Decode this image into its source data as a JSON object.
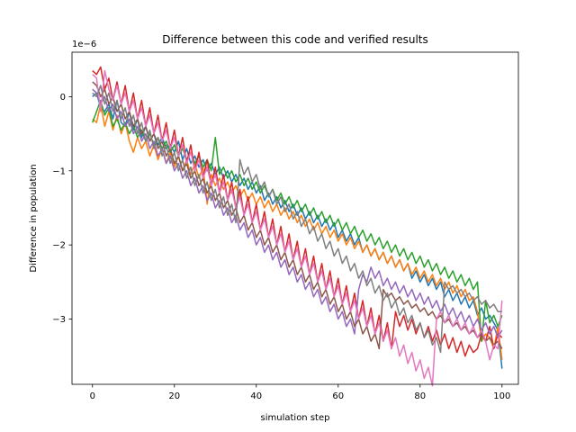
{
  "chart_data": {
    "type": "line",
    "title": "Difference between this code and verified results",
    "xlabel": "simulation step",
    "ylabel": "Difference in population",
    "offset_text": "1e−6",
    "y_scale_exponent": -6,
    "xlim": [
      -5,
      104
    ],
    "ylim": [
      -3.88,
      0.6
    ],
    "xticks": [
      0,
      20,
      40,
      60,
      80,
      100
    ],
    "yticks": [
      0,
      -1,
      -2,
      -3
    ],
    "grid": false,
    "legend": "none",
    "series_colors": [
      "#1f77b4",
      "#ff7f0e",
      "#2ca02c",
      "#d62728",
      "#9467bd",
      "#8c564b",
      "#e377c2",
      "#7f7f7f"
    ],
    "series": [
      {
        "values": [
          0.0,
          0.05,
          -0.15,
          -0.2,
          -0.1,
          -0.3,
          -0.05,
          -0.35,
          -0.4,
          -0.2,
          -0.45,
          -0.3,
          -0.55,
          -0.4,
          -0.6,
          -0.5,
          -0.65,
          -0.55,
          -0.7,
          -0.65,
          -0.75,
          -0.6,
          -0.85,
          -0.7,
          -0.9,
          -0.8,
          -0.95,
          -0.85,
          -1.0,
          -0.9,
          -1.05,
          -0.95,
          -1.1,
          -1.0,
          -1.15,
          -1.05,
          -1.2,
          -1.1,
          -1.25,
          -1.15,
          -1.3,
          -1.2,
          -1.4,
          -1.3,
          -1.45,
          -1.35,
          -1.5,
          -1.4,
          -1.55,
          -1.45,
          -1.6,
          -1.5,
          -1.65,
          -1.55,
          -1.7,
          -1.6,
          -1.75,
          -1.65,
          -1.8,
          -1.7,
          -1.9,
          -1.8,
          -1.95,
          -1.85,
          -2.0,
          -1.9,
          -2.1,
          -2.0,
          -2.15,
          -2.05,
          -2.2,
          -2.1,
          -2.25,
          -2.15,
          -2.3,
          -2.2,
          -2.35,
          -2.25,
          -2.45,
          -2.35,
          -2.5,
          -2.4,
          -2.55,
          -2.45,
          -2.6,
          -2.5,
          -2.7,
          -2.6,
          -2.75,
          -2.65,
          -2.8,
          -2.7,
          -2.85,
          -2.75,
          -2.95,
          -2.85,
          -3.0,
          -2.95,
          -3.05,
          -3.15,
          -3.67
        ]
      },
      {
        "values": [
          -0.3,
          -0.35,
          -0.1,
          -0.4,
          -0.2,
          -0.45,
          -0.25,
          -0.5,
          -0.35,
          -0.6,
          -0.75,
          -0.55,
          -0.7,
          -0.6,
          -0.8,
          -0.65,
          -0.85,
          -0.7,
          -0.9,
          -0.75,
          -0.95,
          -0.8,
          -1.0,
          -0.85,
          -1.05,
          -0.9,
          -1.1,
          -0.95,
          -1.45,
          -1.05,
          -1.2,
          -1.1,
          -1.25,
          -1.15,
          -1.3,
          -1.2,
          -1.35,
          -1.25,
          -1.4,
          -1.3,
          -1.45,
          -1.35,
          -1.5,
          -1.4,
          -1.55,
          -1.45,
          -1.6,
          -1.5,
          -1.65,
          -1.55,
          -1.7,
          -1.6,
          -1.75,
          -1.65,
          -1.8,
          -1.7,
          -1.85,
          -1.75,
          -1.9,
          -1.8,
          -1.95,
          -1.85,
          -2.0,
          -1.9,
          -2.05,
          -1.95,
          -2.1,
          -2.0,
          -2.15,
          -2.05,
          -2.2,
          -2.1,
          -2.25,
          -2.15,
          -2.3,
          -2.2,
          -2.35,
          -2.25,
          -2.4,
          -2.3,
          -2.45,
          -2.35,
          -2.5,
          -2.4,
          -2.55,
          -2.45,
          -2.6,
          -2.5,
          -2.65,
          -2.55,
          -2.7,
          -2.6,
          -2.75,
          -2.7,
          -2.9,
          -3.3,
          -3.2,
          -3.25,
          -3.4,
          -3.1,
          -3.55
        ]
      },
      {
        "values": [
          -0.35,
          -0.2,
          -0.05,
          -0.25,
          -0.15,
          -0.4,
          -0.3,
          -0.45,
          -0.35,
          -0.5,
          -0.4,
          -0.55,
          -0.45,
          -0.6,
          -0.5,
          -0.65,
          -0.55,
          -0.7,
          -0.6,
          -0.75,
          -0.65,
          -0.8,
          -0.7,
          -0.85,
          -0.75,
          -0.9,
          -0.8,
          -0.95,
          -0.85,
          -1.0,
          -0.55,
          -1.05,
          -0.95,
          -1.1,
          -1.0,
          -1.15,
          -1.05,
          -1.2,
          -1.1,
          -1.25,
          -1.15,
          -1.3,
          -1.2,
          -1.35,
          -1.25,
          -1.4,
          -1.3,
          -1.45,
          -1.35,
          -1.5,
          -1.4,
          -1.55,
          -1.45,
          -1.6,
          -1.5,
          -1.65,
          -1.55,
          -1.7,
          -1.6,
          -1.75,
          -1.65,
          -1.8,
          -1.7,
          -1.85,
          -1.75,
          -1.9,
          -1.8,
          -1.95,
          -1.85,
          -2.0,
          -1.9,
          -2.05,
          -1.95,
          -2.1,
          -2.0,
          -2.15,
          -2.05,
          -2.2,
          -2.1,
          -2.25,
          -2.15,
          -2.3,
          -2.2,
          -2.35,
          -2.25,
          -2.4,
          -2.3,
          -2.45,
          -2.35,
          -2.5,
          -2.4,
          -2.55,
          -2.45,
          -2.6,
          -2.5,
          -3.3,
          -2.75,
          -3.05,
          -2.95,
          -3.1,
          -2.95
        ]
      },
      {
        "values": [
          0.35,
          0.3,
          0.4,
          0.1,
          0.25,
          -0.05,
          0.2,
          -0.1,
          0.15,
          -0.2,
          0.05,
          -0.3,
          -0.05,
          -0.4,
          -0.15,
          -0.5,
          -0.25,
          -0.6,
          -0.35,
          -0.7,
          -0.45,
          -0.8,
          -0.55,
          -0.9,
          -0.65,
          -1.0,
          -0.75,
          -1.1,
          -0.85,
          -1.2,
          -0.95,
          -1.3,
          -1.05,
          -1.4,
          -1.15,
          -1.5,
          -1.25,
          -1.6,
          -1.35,
          -1.7,
          -1.45,
          -1.8,
          -1.55,
          -1.9,
          -1.65,
          -2.0,
          -1.75,
          -2.1,
          -1.85,
          -2.2,
          -1.95,
          -2.3,
          -2.05,
          -2.4,
          -2.15,
          -2.5,
          -2.25,
          -2.6,
          -2.35,
          -2.7,
          -2.45,
          -2.8,
          -2.55,
          -2.9,
          -2.65,
          -3.0,
          -2.75,
          -3.1,
          -2.85,
          -3.2,
          -2.95,
          -3.3,
          -3.05,
          -3.4,
          -2.9,
          -3.1,
          -2.95,
          -3.15,
          -3.0,
          -3.2,
          -3.05,
          -3.25,
          -3.1,
          -3.3,
          -3.15,
          -3.35,
          -3.2,
          -3.4,
          -3.25,
          -3.45,
          -3.3,
          -3.5,
          -3.35,
          -3.45,
          -3.4,
          -3.2,
          -3.3,
          -3.1,
          -3.4,
          -3.2,
          -3.25
        ]
      },
      {
        "values": [
          0.1,
          0.05,
          -0.1,
          0.0,
          -0.2,
          -0.1,
          -0.3,
          -0.2,
          -0.4,
          -0.3,
          -0.5,
          -0.4,
          -0.6,
          -0.5,
          -0.7,
          -0.6,
          -0.8,
          -0.7,
          -0.9,
          -0.8,
          -1.0,
          -0.9,
          -1.1,
          -1.0,
          -1.2,
          -1.1,
          -1.3,
          -1.2,
          -1.4,
          -1.3,
          -1.5,
          -1.4,
          -1.6,
          -1.5,
          -1.7,
          -1.6,
          -1.8,
          -1.7,
          -1.9,
          -1.8,
          -2.0,
          -1.9,
          -2.1,
          -2.0,
          -2.2,
          -2.1,
          -2.3,
          -2.2,
          -2.4,
          -2.3,
          -2.5,
          -2.4,
          -2.6,
          -2.5,
          -2.7,
          -2.6,
          -2.8,
          -2.7,
          -2.9,
          -2.8,
          -3.0,
          -2.9,
          -3.1,
          -3.0,
          -3.2,
          -2.6,
          -2.4,
          -2.5,
          -2.3,
          -2.45,
          -2.35,
          -2.55,
          -2.45,
          -2.6,
          -2.5,
          -2.65,
          -2.55,
          -2.7,
          -2.6,
          -2.75,
          -2.65,
          -2.8,
          -2.7,
          -2.85,
          -2.75,
          -2.9,
          -2.8,
          -2.95,
          -2.85,
          -3.0,
          -2.9,
          -3.05,
          -2.95,
          -3.1,
          -3.0,
          -3.15,
          -3.05,
          -3.2,
          -3.1,
          -3.25,
          -3.15
        ]
      },
      {
        "values": [
          0.2,
          0.15,
          0.0,
          0.1,
          -0.1,
          0.0,
          -0.2,
          -0.1,
          -0.3,
          -0.2,
          -0.4,
          -0.3,
          -0.5,
          -0.4,
          -0.6,
          -0.5,
          -0.7,
          -0.6,
          -0.8,
          -0.7,
          -0.9,
          -0.8,
          -1.0,
          -0.9,
          -1.1,
          -1.0,
          -1.2,
          -1.1,
          -1.3,
          -1.2,
          -1.4,
          -1.3,
          -1.5,
          -1.4,
          -1.6,
          -1.5,
          -1.7,
          -1.6,
          -1.8,
          -1.7,
          -1.9,
          -1.8,
          -2.0,
          -1.9,
          -2.1,
          -2.0,
          -2.2,
          -2.1,
          -2.3,
          -2.2,
          -2.4,
          -2.3,
          -2.5,
          -2.4,
          -2.6,
          -2.5,
          -2.7,
          -2.6,
          -2.8,
          -2.7,
          -2.9,
          -2.8,
          -3.0,
          -2.9,
          -3.1,
          -3.0,
          -3.2,
          -3.1,
          -3.3,
          -3.2,
          -3.4,
          -2.6,
          -2.7,
          -2.65,
          -2.75,
          -2.7,
          -2.8,
          -2.75,
          -2.85,
          -2.8,
          -2.9,
          -2.85,
          -2.95,
          -2.9,
          -3.0,
          -2.95,
          -3.05,
          -3.0,
          -3.1,
          -3.05,
          -3.15,
          -3.1,
          -3.2,
          -3.15,
          -3.25,
          -3.2,
          -3.3,
          -3.25,
          -3.35,
          -3.3,
          -3.4
        ]
      },
      {
        "values": [
          0.3,
          0.25,
          -0.2,
          0.35,
          0.1,
          -0.05,
          0.15,
          -0.1,
          0.05,
          -0.2,
          -0.05,
          -0.3,
          -0.15,
          -0.4,
          -0.25,
          -0.5,
          -0.35,
          -0.6,
          -0.45,
          -0.7,
          -0.55,
          -0.8,
          -0.65,
          -0.9,
          -0.75,
          -1.0,
          -0.85,
          -1.1,
          -0.95,
          -1.2,
          -1.05,
          -1.3,
          -1.15,
          -1.4,
          -1.25,
          -1.5,
          -1.35,
          -1.6,
          -1.45,
          -1.7,
          -1.55,
          -1.8,
          -1.65,
          -1.9,
          -1.75,
          -2.0,
          -1.85,
          -2.1,
          -1.95,
          -2.2,
          -2.05,
          -2.3,
          -2.15,
          -2.4,
          -2.25,
          -2.5,
          -2.35,
          -2.6,
          -2.45,
          -2.7,
          -2.55,
          -2.8,
          -2.65,
          -2.9,
          -2.75,
          -3.0,
          -2.85,
          -3.1,
          -2.95,
          -3.2,
          -3.05,
          -3.3,
          -3.15,
          -3.4,
          -3.25,
          -3.5,
          -3.35,
          -3.6,
          -3.45,
          -3.7,
          -3.55,
          -3.8,
          -3.65,
          -3.9,
          -3.0,
          -2.9,
          -3.05,
          -2.95,
          -3.1,
          -3.0,
          -3.15,
          -3.05,
          -3.2,
          -3.1,
          -3.25,
          -3.15,
          -3.3,
          -3.55,
          -3.35,
          -3.4,
          -2.75
        ]
      },
      {
        "values": [
          0.05,
          0.0,
          0.15,
          -0.1,
          0.05,
          -0.2,
          -0.05,
          -0.3,
          -0.15,
          -0.4,
          -0.25,
          -0.5,
          -0.35,
          -0.6,
          -0.45,
          -0.7,
          -0.55,
          -0.8,
          -0.65,
          -0.9,
          -0.75,
          -1.0,
          -0.85,
          -1.1,
          -0.95,
          -1.2,
          -1.05,
          -1.3,
          -1.15,
          -1.4,
          -1.25,
          -1.5,
          -1.35,
          -1.6,
          -1.45,
          -1.7,
          -0.85,
          -1.05,
          -0.95,
          -1.15,
          -1.05,
          -1.25,
          -1.15,
          -1.35,
          -1.25,
          -1.45,
          -1.35,
          -1.55,
          -1.45,
          -1.65,
          -1.55,
          -1.75,
          -1.65,
          -1.85,
          -1.75,
          -1.95,
          -1.85,
          -2.05,
          -1.95,
          -2.15,
          -2.05,
          -2.25,
          -2.15,
          -2.35,
          -2.25,
          -2.45,
          -2.35,
          -2.55,
          -2.45,
          -2.65,
          -2.55,
          -2.75,
          -2.65,
          -2.85,
          -2.75,
          -2.95,
          -2.85,
          -3.05,
          -2.95,
          -3.15,
          -3.05,
          -3.25,
          -3.15,
          -3.35,
          -3.25,
          -3.45,
          -2.5,
          -2.6,
          -2.55,
          -2.65,
          -2.6,
          -2.7,
          -2.65,
          -2.75,
          -2.7,
          -2.8,
          -2.75,
          -2.85,
          -2.8,
          -2.9,
          -2.9
        ]
      }
    ]
  }
}
